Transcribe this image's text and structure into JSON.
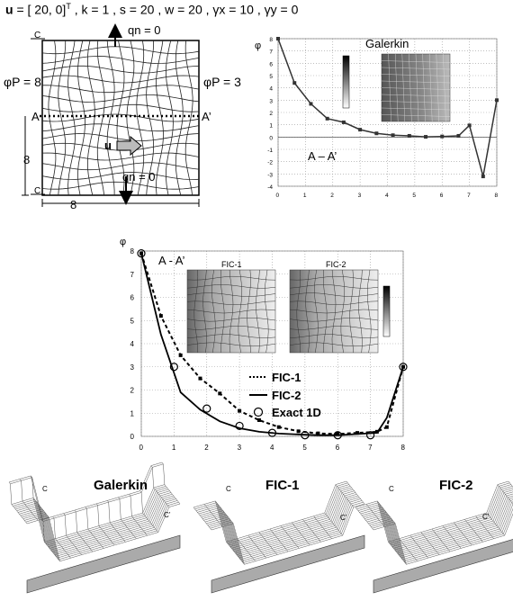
{
  "header": {
    "u_sym": "u",
    "u_eq": "= [ 20, 0]",
    "u_sup": "T",
    "params": ", k = 1 , s = 20 , w = 20 , γx = 10 , γy = 0"
  },
  "domain": {
    "qn_top": "qn = 0",
    "qn_bottom": "qn = 0",
    "phi_left": "φP = 8",
    "phi_right": "φP = 3",
    "label_A": "A",
    "label_Aprime": "A’",
    "label_C_top": "C",
    "label_C_bottom": "C",
    "dim_height": "8",
    "dim_width": "8",
    "u_label": "u"
  },
  "galerkin_plot": {
    "title": "Galerkin",
    "section_label": "A – A’",
    "ylabel": "φ"
  },
  "fic_plot": {
    "ylabel": "φ",
    "section_label": "A - A’",
    "inset1": "FIC-1",
    "inset2": "FIC-2",
    "legend": [
      "FIC-1",
      "FIC-2",
      "Exact 1D"
    ]
  },
  "surfaces": [
    {
      "title": "Galerkin",
      "c": "C",
      "cprime": "C’"
    },
    {
      "title": "FIC-1",
      "c": "C",
      "cprime": "C’"
    },
    {
      "title": "FIC-2",
      "c": "C",
      "cprime": "C’"
    }
  ],
  "chart_data": [
    {
      "type": "line",
      "title": "Galerkin",
      "xlim": [
        0,
        8
      ],
      "ylim": [
        -4,
        8
      ],
      "xticks": [
        0,
        1,
        2,
        3,
        4,
        5,
        6,
        7,
        8
      ],
      "yticks": [
        -4,
        -3,
        -2,
        -1,
        0,
        1,
        2,
        3,
        4,
        5,
        6,
        7,
        8
      ],
      "series": [
        {
          "x": [
            0,
            0.6,
            1.2,
            1.8,
            2.4,
            3.0,
            3.6,
            4.2,
            4.8,
            5.4,
            6.0,
            6.6,
            7.0,
            7.5,
            8.0
          ],
          "y": [
            8,
            4.4,
            2.7,
            1.5,
            1.2,
            0.6,
            0.3,
            0.15,
            0.1,
            0.02,
            0.05,
            0.1,
            0.95,
            -3.2,
            3.0
          ]
        }
      ]
    },
    {
      "type": "line",
      "xlim": [
        0,
        8
      ],
      "ylim": [
        0,
        8
      ],
      "xticks": [
        0,
        1,
        2,
        3,
        4,
        5,
        6,
        7,
        8
      ],
      "yticks": [
        0,
        1,
        2,
        3,
        4,
        5,
        6,
        7,
        8
      ],
      "series": [
        {
          "name": "FIC-1",
          "x": [
            0,
            0.6,
            1.2,
            1.8,
            2.4,
            3.0,
            3.6,
            4.2,
            4.8,
            5.4,
            6.0,
            6.6,
            7.2,
            7.5,
            8.0
          ],
          "y": [
            7.9,
            5.2,
            3.5,
            2.5,
            1.85,
            1.1,
            0.7,
            0.4,
            0.22,
            0.13,
            0.1,
            0.15,
            0.2,
            0.4,
            3.0
          ]
        },
        {
          "name": "FIC-2",
          "x": [
            0,
            0.6,
            1.2,
            1.8,
            2.4,
            3.0,
            3.6,
            4.2,
            4.8,
            5.4,
            6.0,
            6.6,
            7.2,
            7.5,
            8.0
          ],
          "y": [
            7.9,
            4.4,
            1.9,
            1.15,
            0.65,
            0.35,
            0.2,
            0.12,
            0.08,
            0.05,
            0.05,
            0.1,
            0.15,
            0.8,
            3.0
          ]
        },
        {
          "name": "Exact 1D",
          "x": [
            0,
            1,
            2,
            3,
            4,
            5,
            6,
            7,
            8
          ],
          "y": [
            7.9,
            3.0,
            1.2,
            0.45,
            0.15,
            0.05,
            0.05,
            0.05,
            3.0
          ]
        }
      ]
    }
  ]
}
